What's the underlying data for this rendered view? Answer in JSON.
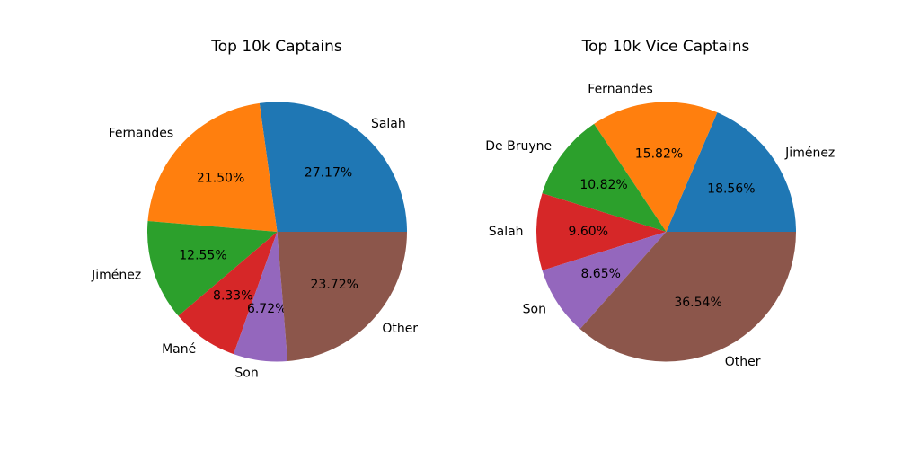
{
  "chart_data": [
    {
      "type": "pie",
      "title": "Top 10k Captains",
      "slices": [
        {
          "label": "Salah",
          "value": 27.17,
          "pct_label": "27.17%",
          "color": "#1f77b4"
        },
        {
          "label": "Fernandes",
          "value": 21.5,
          "pct_label": "21.50%",
          "color": "#ff7f0e"
        },
        {
          "label": "Jiménez",
          "value": 12.55,
          "pct_label": "12.55%",
          "color": "#2ca02c"
        },
        {
          "label": "Mané",
          "value": 8.33,
          "pct_label": "8.33%",
          "color": "#d62728"
        },
        {
          "label": "Son",
          "value": 6.72,
          "pct_label": "6.72%",
          "color": "#9467bd"
        },
        {
          "label": "Other",
          "value": 23.72,
          "pct_label": "23.72%",
          "color": "#8c564b"
        }
      ]
    },
    {
      "type": "pie",
      "title": "Top 10k Vice Captains",
      "slices": [
        {
          "label": "Jiménez",
          "value": 18.56,
          "pct_label": "18.56%",
          "color": "#1f77b4"
        },
        {
          "label": "Fernandes",
          "value": 15.82,
          "pct_label": "15.82%",
          "color": "#ff7f0e"
        },
        {
          "label": "De Bruyne",
          "value": 10.82,
          "pct_label": "10.82%",
          "color": "#2ca02c"
        },
        {
          "label": "Salah",
          "value": 9.6,
          "pct_label": "9.60%",
          "color": "#d62728"
        },
        {
          "label": "Son",
          "value": 8.65,
          "pct_label": "8.65%",
          "color": "#9467bd"
        },
        {
          "label": "Other",
          "value": 36.54,
          "pct_label": "36.54%",
          "color": "#8c564b"
        }
      ]
    }
  ]
}
